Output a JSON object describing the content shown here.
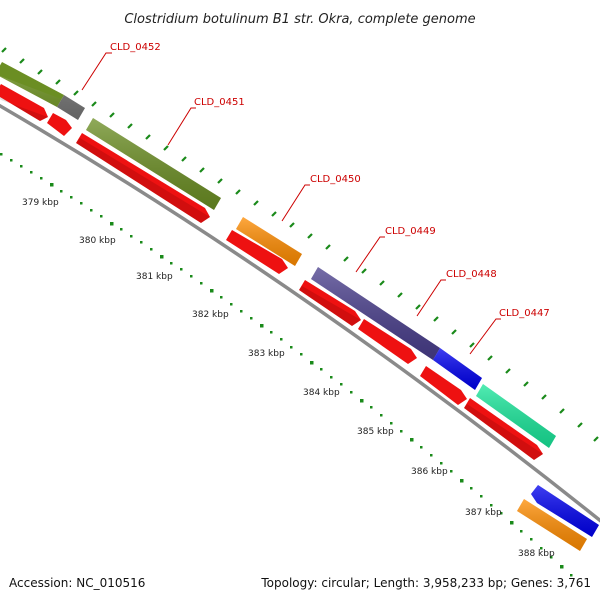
{
  "title": "Clostridium botulinum B1 str. Okra, complete genome",
  "footer": {
    "accession": "Accession: NC_010516",
    "summary": "Topology: circular; Length: 3,958,233 bp; Genes: 3,761"
  },
  "gene_labels": [
    "CLD_0452",
    "CLD_0451",
    "CLD_0450",
    "CLD_0449",
    "CLD_0448",
    "CLD_0447"
  ],
  "kbp_ticks": [
    "379 kbp",
    "380 kbp",
    "381 kbp",
    "382 kbp",
    "383 kbp",
    "384 kbp",
    "385 kbp",
    "386 kbp",
    "387 kbp",
    "388 kbp"
  ],
  "colors": {
    "olive": "#6b8e23",
    "gray": "#6e6e6e",
    "orange": "#ff8c00",
    "dark_slate_blue": "#483d8b",
    "blue": "#0000ee",
    "spring_green": "#19e69a",
    "red": "#ee1111",
    "backbone": "#8a8a8a",
    "tick_green": "#1a8a1a",
    "label_red": "#cc0000"
  }
}
